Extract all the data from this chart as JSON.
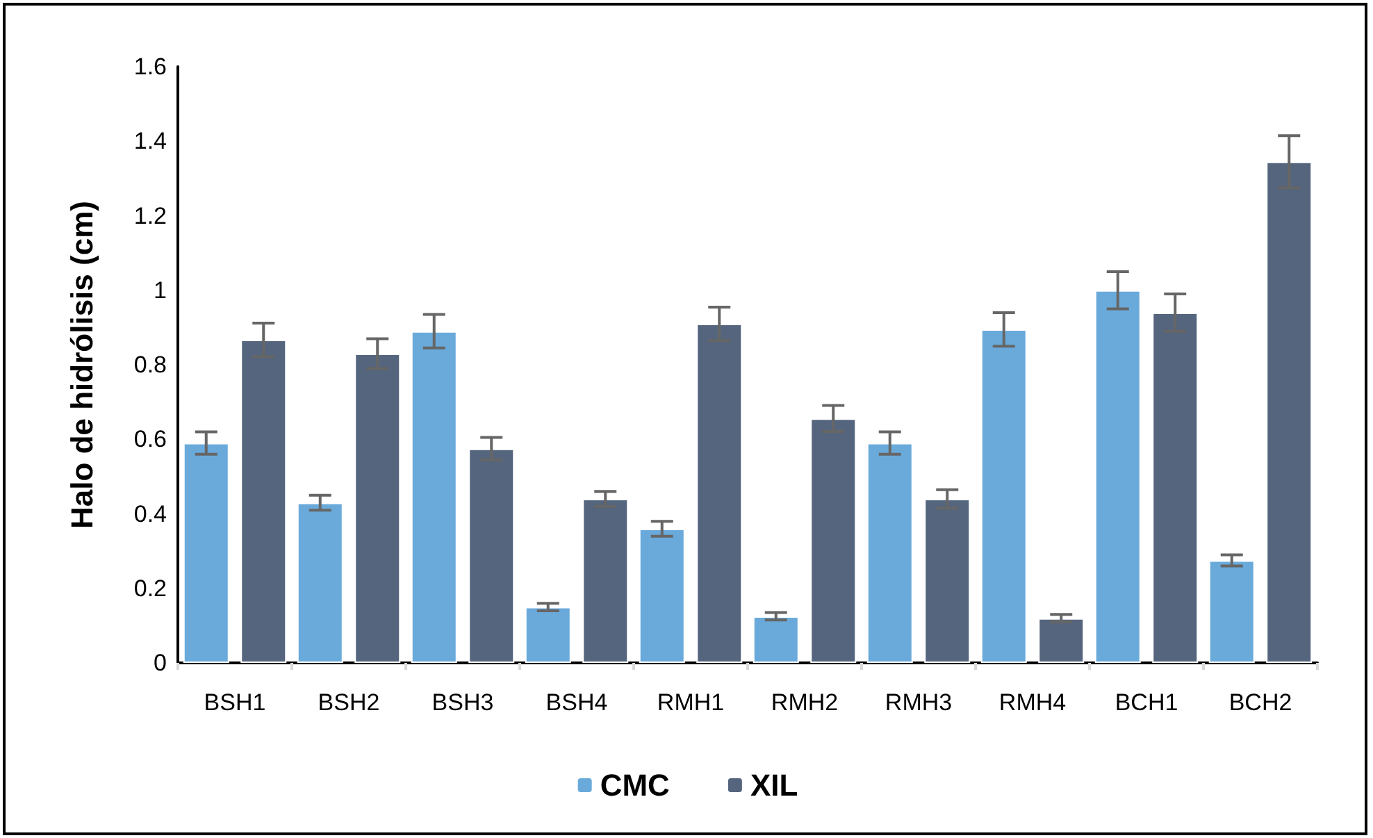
{
  "chart_data": {
    "type": "bar",
    "ylabel": "Halo de hidrólisis (cm)",
    "categories": [
      "BSH1",
      "BSH2",
      "BSH3",
      "BSH4",
      "RMH1",
      "RMH2",
      "RMH3",
      "RMH4",
      "BCH1",
      "BCH2"
    ],
    "series": [
      {
        "name": "CMC",
        "color": "#6aaadb",
        "values": [
          0.59,
          0.43,
          0.89,
          0.15,
          0.36,
          0.125,
          0.59,
          0.895,
          1.0,
          0.275
        ],
        "errors": [
          0.03,
          0.02,
          0.045,
          0.01,
          0.02,
          0.01,
          0.03,
          0.045,
          0.05,
          0.015
        ]
      },
      {
        "name": "XIL",
        "color": "#54657d",
        "values": [
          0.867,
          0.83,
          0.575,
          0.44,
          0.91,
          0.656,
          0.44,
          0.12,
          0.94,
          1.345
        ],
        "errors": [
          0.045,
          0.04,
          0.03,
          0.02,
          0.045,
          0.035,
          0.025,
          0.01,
          0.05,
          0.07
        ]
      }
    ],
    "ylim": [
      0,
      1.6
    ],
    "yticks": [
      0,
      0.2,
      0.4,
      0.6,
      0.8,
      1,
      1.2,
      1.4,
      1.6
    ],
    "grid": false,
    "legend": "bottom"
  }
}
